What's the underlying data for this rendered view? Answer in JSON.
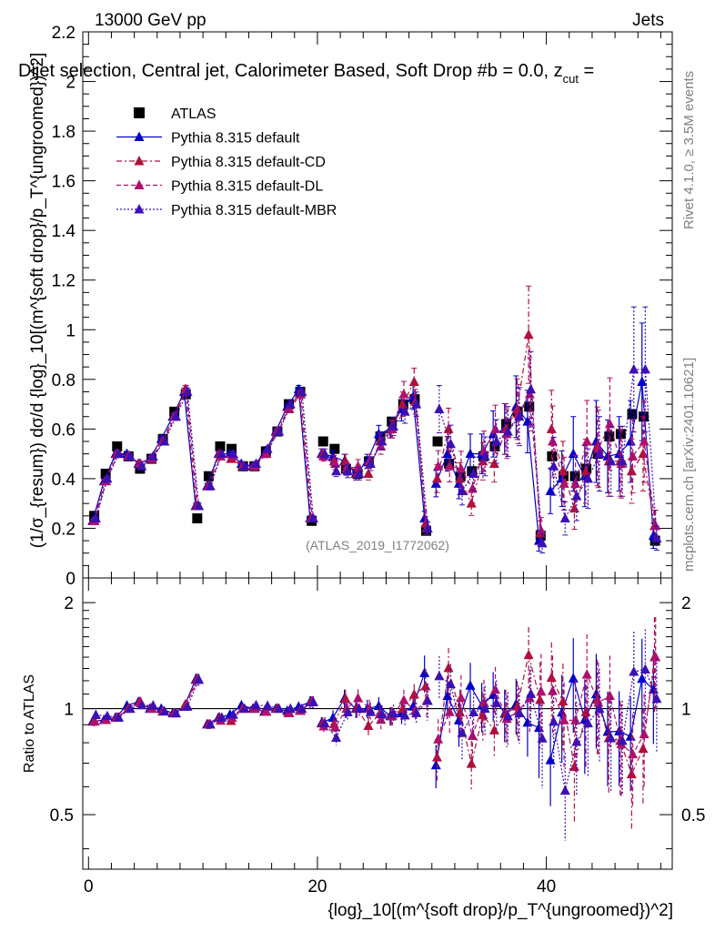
{
  "header": {
    "energy_label": "13000 GeV pp",
    "process_label": "Jets",
    "title": "Dijet selection, Central jet, Calorimeter Based, Soft Drop #b = 0.0, z",
    "title_sub": "cut",
    "title_tail": " =",
    "rivet_label": "Rivet 4.1.0, ≥ 3.5M events",
    "mcplots_label": "mcplots.cern.ch [arXiv:2401.10621]",
    "analysis_id": "(ATLAS_2019_I1772062)"
  },
  "chart_data": {
    "type": "scatter",
    "top_panel": {
      "ylabel": "(1/σ_{resum}) dσ/d {log}_10[(m^{soft drop}/p_T^{ungroomed})^2]",
      "ylim": [
        0,
        2.2
      ],
      "yticks": [
        0,
        0.2,
        0.4,
        0.6,
        0.8,
        1,
        1.2,
        1.4,
        1.6,
        1.8,
        2,
        2.2
      ],
      "ytick_labels": [
        "0",
        "0.2",
        "0.4",
        "0.6",
        "0.8",
        "1",
        "1.2",
        "1.4",
        "1.6",
        "1.8",
        "2",
        "2.2"
      ]
    },
    "ratio_panel": {
      "ylabel": "Ratio to ATLAS",
      "ylim": [
        0.35,
        2.35
      ],
      "ytick_labels": [
        "0.5",
        "1",
        "2"
      ],
      "yticks": [
        0.5,
        1,
        2
      ],
      "reference_line": 1
    },
    "x_axis": {
      "xlabel": "{log}_10[(m^{soft drop}/p_T^{ungroomed})^2]",
      "xlim": [
        -0.5,
        51
      ],
      "xticks": [
        0,
        20,
        40
      ],
      "xtick_labels": [
        "0",
        "20",
        "40"
      ]
    },
    "legend": {
      "position": "top-left",
      "entries": [
        {
          "label": "ATLAS",
          "marker": "square",
          "color": "#000000",
          "line": "none"
        },
        {
          "label": "Pythia 8.315 default",
          "marker": "triangle",
          "color": "#0000cc",
          "line": "solid"
        },
        {
          "label": "Pythia 8.315 default-CD",
          "marker": "triangle",
          "color": "#b0103a",
          "line": "dashdot"
        },
        {
          "label": "Pythia 8.315 default-DL",
          "marker": "triangle",
          "color": "#b0106a",
          "line": "dashed"
        },
        {
          "label": "Pythia 8.315 default-MBR",
          "marker": "triangle",
          "color": "#3c10b4",
          "line": "dotted"
        }
      ]
    },
    "x": [
      0.5,
      1.5,
      2.5,
      3.5,
      4.5,
      5.5,
      6.5,
      7.5,
      8.5,
      9.5,
      10.5,
      11.5,
      12.5,
      13.5,
      14.5,
      15.5,
      16.5,
      17.5,
      18.5,
      19.5,
      20.5,
      21.5,
      22.5,
      23.5,
      24.5,
      25.5,
      26.5,
      27.5,
      28.5,
      29.5,
      30.5,
      31.5,
      32.5,
      33.5,
      34.5,
      35.5,
      36.5,
      37.5,
      38.5,
      39.5,
      40.5,
      41.5,
      42.5,
      43.5,
      44.5,
      45.5,
      46.5,
      47.5,
      48.5,
      49.5
    ],
    "series": [
      {
        "name": "ATLAS",
        "values": [
          0.25,
          0.42,
          0.53,
          0.49,
          0.44,
          0.48,
          0.56,
          0.67,
          0.74,
          0.24,
          0.41,
          0.53,
          0.52,
          0.45,
          0.45,
          0.51,
          0.59,
          0.7,
          0.75,
          0.23,
          0.55,
          0.52,
          0.44,
          0.42,
          0.47,
          0.57,
          0.63,
          0.7,
          0.72,
          0.19,
          0.55,
          0.46,
          0.41,
          0.43,
          0.49,
          0.53,
          0.62,
          0.67,
          0.69,
          0.17,
          0.49,
          0.41,
          0.41,
          0.44,
          0.5,
          0.57,
          0.58,
          0.66,
          0.65,
          0.15
        ]
      },
      {
        "name": "Pythia 8.315 default",
        "values": [
          0.23,
          0.39,
          0.5,
          0.5,
          0.46,
          0.48,
          0.56,
          0.65,
          0.75,
          0.29,
          0.37,
          0.5,
          0.5,
          0.46,
          0.45,
          0.5,
          0.59,
          0.69,
          0.76,
          0.24,
          0.5,
          0.49,
          0.47,
          0.42,
          0.47,
          0.58,
          0.6,
          0.68,
          0.73,
          0.24,
          0.38,
          0.5,
          0.38,
          0.5,
          0.5,
          0.58,
          0.6,
          0.69,
          0.63,
          0.15,
          0.35,
          0.4,
          0.5,
          0.41,
          0.55,
          0.49,
          0.5,
          0.55,
          0.79,
          0.17
        ]
      },
      {
        "name": "Pythia 8.315 default-CD",
        "values": [
          0.23,
          0.39,
          0.5,
          0.49,
          0.46,
          0.48,
          0.55,
          0.65,
          0.76,
          0.29,
          0.37,
          0.5,
          0.48,
          0.45,
          0.45,
          0.5,
          0.59,
          0.68,
          0.74,
          0.24,
          0.5,
          0.47,
          0.47,
          0.42,
          0.42,
          0.55,
          0.6,
          0.7,
          0.79,
          0.22,
          0.4,
          0.6,
          0.4,
          0.3,
          0.47,
          0.46,
          0.6,
          0.68,
          0.98,
          0.18,
          0.6,
          0.43,
          0.28,
          0.43,
          0.53,
          0.47,
          0.47,
          0.43,
          0.5,
          0.21
        ]
      },
      {
        "name": "Pythia 8.315 default-DL",
        "values": [
          0.23,
          0.39,
          0.5,
          0.49,
          0.46,
          0.48,
          0.55,
          0.65,
          0.76,
          0.29,
          0.37,
          0.49,
          0.49,
          0.45,
          0.45,
          0.5,
          0.59,
          0.68,
          0.74,
          0.24,
          0.49,
          0.46,
          0.44,
          0.45,
          0.47,
          0.53,
          0.6,
          0.74,
          0.71,
          0.2,
          0.45,
          0.45,
          0.44,
          0.36,
          0.51,
          0.6,
          0.58,
          0.66,
          0.74,
          0.19,
          0.55,
          0.38,
          0.38,
          0.55,
          0.52,
          0.62,
          0.46,
          0.49,
          0.55,
          0.21
        ]
      },
      {
        "name": "Pythia 8.315 default-MBR",
        "values": [
          0.24,
          0.4,
          0.5,
          0.49,
          0.45,
          0.49,
          0.55,
          0.65,
          0.75,
          0.29,
          0.37,
          0.5,
          0.5,
          0.45,
          0.46,
          0.52,
          0.59,
          0.7,
          0.75,
          0.24,
          0.5,
          0.43,
          0.43,
          0.42,
          0.46,
          0.55,
          0.61,
          0.67,
          0.7,
          0.2,
          0.68,
          0.54,
          0.35,
          0.42,
          0.49,
          0.55,
          0.59,
          0.65,
          0.76,
          0.14,
          0.45,
          0.24,
          0.33,
          0.4,
          0.5,
          0.47,
          0.47,
          0.84,
          0.84,
          0.16
        ]
      }
    ],
    "error_fraction": [
      0.03,
      0.02,
      0.02,
      0.02,
      0.02,
      0.02,
      0.02,
      0.02,
      0.02,
      0.04,
      0.03,
      0.02,
      0.02,
      0.02,
      0.02,
      0.02,
      0.02,
      0.02,
      0.02,
      0.04,
      0.04,
      0.05,
      0.06,
      0.06,
      0.06,
      0.06,
      0.06,
      0.07,
      0.07,
      0.12,
      0.14,
      0.14,
      0.16,
      0.16,
      0.16,
      0.16,
      0.17,
      0.18,
      0.2,
      0.28,
      0.26,
      0.28,
      0.3,
      0.3,
      0.3,
      0.3,
      0.3,
      0.3,
      0.3,
      0.3
    ]
  }
}
